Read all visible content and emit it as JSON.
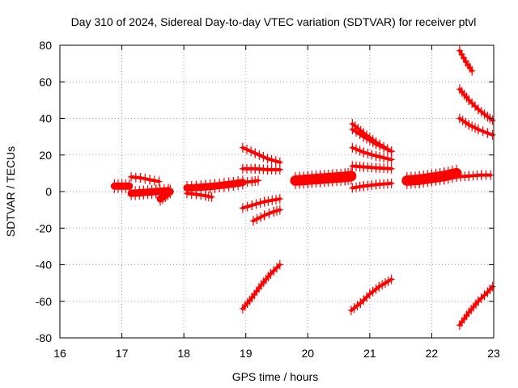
{
  "chart_data": {
    "type": "scatter",
    "title": "Day 310 of 2024, Sidereal Day-to-day VTEC variation (SDTVAR) for receiver ptvl",
    "xlabel": "GPS time / hours",
    "ylabel": "SDTVAR / TECUs",
    "xlim": [
      16,
      23
    ],
    "ylim": [
      -80,
      80
    ],
    "xticks": [
      16,
      17,
      18,
      19,
      20,
      21,
      22,
      23
    ],
    "yticks": [
      -80,
      -60,
      -40,
      -20,
      0,
      20,
      40,
      60,
      80
    ],
    "grid": true,
    "marker": "plus",
    "color": "#ff0000",
    "series": [
      {
        "name": "arc-1",
        "x": [
          16.88,
          17.12
        ],
        "y": [
          3,
          3
        ],
        "weight": "thick"
      },
      {
        "name": "arc-2",
        "x": [
          17.15,
          17.3,
          17.45,
          17.6
        ],
        "y": [
          8,
          7.5,
          6.5,
          5.5
        ],
        "weight": "normal"
      },
      {
        "name": "arc-3",
        "x": [
          17.15,
          17.35,
          17.55,
          17.75
        ],
        "y": [
          -1,
          -0.5,
          0,
          0.5
        ],
        "weight": "thick"
      },
      {
        "name": "arc-4",
        "x": [
          17.62,
          17.7,
          17.78
        ],
        "y": [
          -4,
          -2,
          0
        ],
        "weight": "thick"
      },
      {
        "name": "arc-5",
        "x": [
          18.05,
          18.2,
          18.35,
          18.5,
          18.65,
          18.8,
          18.95
        ],
        "y": [
          2,
          2.2,
          2.6,
          3,
          3.6,
          4.2,
          5
        ],
        "weight": "thick"
      },
      {
        "name": "arc-6",
        "x": [
          18.05,
          18.2,
          18.35,
          18.45
        ],
        "y": [
          -1,
          -1.5,
          -2.3,
          -3
        ],
        "weight": "normal"
      },
      {
        "name": "arc-7",
        "x": [
          18.95,
          19.1,
          19.2
        ],
        "y": [
          5,
          5.5,
          6
        ],
        "weight": "normal"
      },
      {
        "name": "arc-8",
        "x": [
          18.95,
          19.15,
          19.35,
          19.55
        ],
        "y": [
          24,
          21,
          18,
          16
        ],
        "weight": "normal"
      },
      {
        "name": "arc-9",
        "x": [
          18.95,
          19.15,
          19.35,
          19.55
        ],
        "y": [
          12.5,
          12.5,
          12,
          12
        ],
        "weight": "normal"
      },
      {
        "name": "arc-10",
        "x": [
          18.95,
          19.1,
          19.3,
          19.55
        ],
        "y": [
          -9,
          -7.5,
          -5.5,
          -4
        ],
        "weight": "normal"
      },
      {
        "name": "arc-11",
        "x": [
          19.12,
          19.3,
          19.45,
          19.55
        ],
        "y": [
          -16,
          -13,
          -11,
          -10
        ],
        "weight": "normal"
      },
      {
        "name": "arc-12",
        "x": [
          18.95,
          19.1,
          19.25,
          19.4,
          19.55
        ],
        "y": [
          -64,
          -58,
          -51,
          -45,
          -40
        ],
        "weight": "normal"
      },
      {
        "name": "arc-13",
        "x": [
          19.8,
          20.0,
          20.2,
          20.4,
          20.6,
          20.7
        ],
        "y": [
          6,
          6.5,
          7,
          7.5,
          8,
          8.5
        ],
        "weight": "heavy"
      },
      {
        "name": "arc-14",
        "x": [
          20.72,
          20.9,
          21.1,
          21.35
        ],
        "y": [
          37,
          32,
          27,
          22
        ],
        "weight": "normal"
      },
      {
        "name": "arc-15",
        "x": [
          20.72,
          20.9,
          21.1,
          21.35
        ],
        "y": [
          34,
          30,
          26,
          22
        ],
        "weight": "normal"
      },
      {
        "name": "arc-16",
        "x": [
          20.72,
          20.9,
          21.1,
          21.35
        ],
        "y": [
          24,
          21.5,
          19.5,
          17.5
        ],
        "weight": "normal"
      },
      {
        "name": "arc-17",
        "x": [
          20.72,
          20.9,
          21.1,
          21.35
        ],
        "y": [
          14,
          13.5,
          13,
          12.5
        ],
        "weight": "normal"
      },
      {
        "name": "arc-18",
        "x": [
          20.72,
          20.9,
          21.1,
          21.35
        ],
        "y": [
          2,
          3,
          3.8,
          4.5
        ],
        "weight": "normal"
      },
      {
        "name": "arc-19",
        "x": [
          20.7,
          20.85,
          21.0,
          21.15,
          21.35
        ],
        "y": [
          -65,
          -61,
          -56,
          -52,
          -48
        ],
        "weight": "normal"
      },
      {
        "name": "arc-20",
        "x": [
          21.6,
          21.8,
          22.0,
          22.2,
          22.4
        ],
        "y": [
          6,
          6.5,
          7.5,
          8.5,
          10
        ],
        "weight": "heavy"
      },
      {
        "name": "arc-21",
        "x": [
          22.4,
          22.6,
          22.8,
          22.95
        ],
        "y": [
          8,
          8.5,
          9,
          9
        ],
        "weight": "normal"
      },
      {
        "name": "arc-22",
        "x": [
          22.45,
          22.55,
          22.65
        ],
        "y": [
          77,
          71,
          66
        ],
        "weight": "normal"
      },
      {
        "name": "arc-23",
        "x": [
          22.45,
          22.6,
          22.75,
          22.9,
          22.98
        ],
        "y": [
          56,
          50,
          45,
          41,
          39
        ],
        "weight": "normal"
      },
      {
        "name": "arc-24",
        "x": [
          22.45,
          22.6,
          22.75,
          22.9,
          22.98
        ],
        "y": [
          40,
          36.5,
          34,
          32,
          31
        ],
        "weight": "normal"
      },
      {
        "name": "arc-25",
        "x": [
          22.45,
          22.6,
          22.75,
          22.9,
          22.98
        ],
        "y": [
          -73,
          -66,
          -60,
          -55,
          -52
        ],
        "weight": "normal"
      }
    ]
  }
}
